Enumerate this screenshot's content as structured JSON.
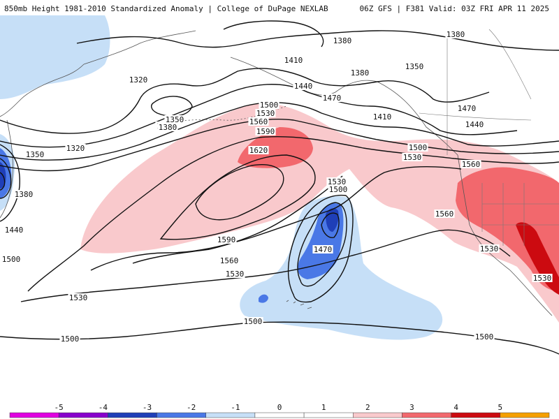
{
  "header": {
    "title_left": "850mb Height 1981-2010 Standardized Anomaly | College of DuPage NEXLAB",
    "title_right": "06Z GFS | F381 Valid: 03Z FRI APR 11 2025"
  },
  "colors": {
    "neg_light": "#c6dff7",
    "neg_mid": "#4a78e6",
    "neg_dark": "#1f3fb8",
    "pos_light": "#f9c9cc",
    "pos_mid": "#f2686d",
    "pos_dark": "#cc0a10",
    "contour": "#111111",
    "coast": "#555555"
  },
  "contour_labels": [
    {
      "text": "1380"
    },
    {
      "text": "1380"
    },
    {
      "text": "1350"
    },
    {
      "text": "1410"
    },
    {
      "text": "1380"
    },
    {
      "text": "1320"
    },
    {
      "text": "1440"
    },
    {
      "text": "1470"
    },
    {
      "text": "1380"
    },
    {
      "text": "1410"
    },
    {
      "text": "1500"
    },
    {
      "text": "1530"
    },
    {
      "text": "1350"
    },
    {
      "text": "1380"
    },
    {
      "text": "1560"
    },
    {
      "text": "1590"
    },
    {
      "text": "1470"
    },
    {
      "text": "1440"
    },
    {
      "text": "1500"
    },
    {
      "text": "1320"
    },
    {
      "text": "1620"
    },
    {
      "text": "1350"
    },
    {
      "text": "1530"
    },
    {
      "text": "1530"
    },
    {
      "text": "1500"
    },
    {
      "text": "1560"
    },
    {
      "text": "1380"
    },
    {
      "text": "1440"
    },
    {
      "text": "1560"
    },
    {
      "text": "1590"
    },
    {
      "text": "1500"
    },
    {
      "text": "1470"
    },
    {
      "text": "1560"
    },
    {
      "text": "1530"
    },
    {
      "text": "1530"
    },
    {
      "text": "1530"
    },
    {
      "text": "1500"
    },
    {
      "text": "1500"
    },
    {
      "text": "1500"
    },
    {
      "text": "1530"
    }
  ],
  "legend": {
    "ticks": [
      "-5",
      "-4",
      "-3",
      "-2",
      "-1",
      "0",
      "1",
      "2",
      "3",
      "4",
      "5"
    ],
    "segments": [
      "#e000e0",
      "#8800cc",
      "#1f3fb8",
      "#4a78e6",
      "#c6dff7",
      "#ffffff",
      "#ffffff",
      "#f9c9cc",
      "#f2686d",
      "#cc0a10",
      "#f5a000"
    ]
  }
}
